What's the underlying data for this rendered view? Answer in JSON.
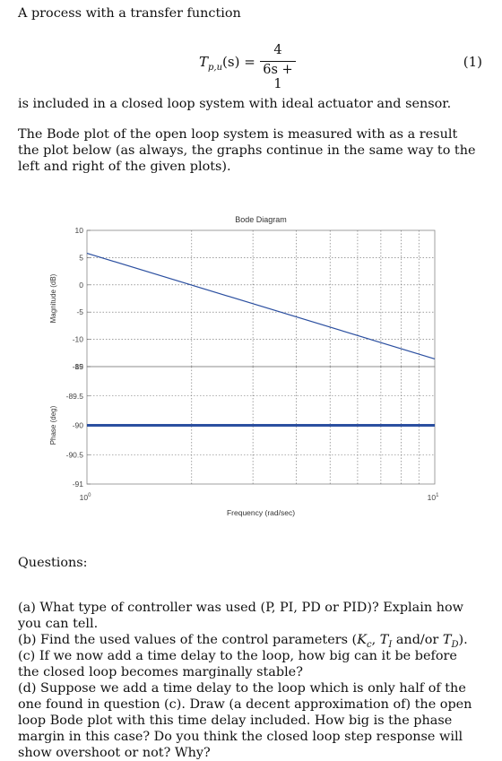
{
  "intro": "A process with a transfer function",
  "equation": {
    "lhs": "T",
    "lhs_sub": "p,u",
    "lhs_arg": "(s) =",
    "numerator": "4",
    "denominator": "6s + 1",
    "number": "(1)"
  },
  "after_equation": "is included in a closed loop system with ideal actuator and sensor.",
  "bode_intro": "The Bode plot of the open loop system is measured with as a result the plot below (as always, the graphs continue in the same way to the left and right of the given plots).",
  "chart_data": {
    "type": "line",
    "title": "Bode Diagram",
    "xlabel": "Frequency (rad/sec)",
    "x_scale": "log",
    "xlim": [
      1,
      10
    ],
    "x_tick_labels": [
      "10^0",
      "10^1"
    ],
    "grid": true,
    "subplots": [
      {
        "name": "magnitude",
        "ylabel": "Magnitude (dB)",
        "ylim": [
          -15,
          10
        ],
        "y_ticks": [
          10,
          5,
          0,
          -5,
          -10,
          -15
        ],
        "series": [
          {
            "x": [
              1,
              10
            ],
            "y": [
              5.8,
              -13.6
            ],
            "color": "#2b4fa0"
          }
        ]
      },
      {
        "name": "phase",
        "ylabel": "Phase (deg)",
        "ylim": [
          -91,
          -89
        ],
        "y_ticks": [
          -89,
          -89.5,
          -90,
          -90.5,
          -91
        ],
        "series": [
          {
            "x": [
              1,
              10
            ],
            "y": [
              -90,
              -90
            ],
            "color": "#2b4fa0"
          }
        ]
      }
    ]
  },
  "questions_heading": "Questions:",
  "questions": {
    "a": "(a) What type of controller was used (P, PI, PD or PID)? Explain how you can tell.",
    "b_start": "(b) Find the used values of the control parameters (",
    "b_kc": "K",
    "b_kc_sub": "c",
    "b_sep1": ", ",
    "b_ti": "T",
    "b_ti_sub": "I",
    "b_sep2": " and/or ",
    "b_td": "T",
    "b_td_sub": "D",
    "b_end": ").",
    "c": "(c) If we now add a time delay to the loop, how big can it be before the closed loop becomes marginally stable?",
    "d": "(d) Suppose we add a time delay to the loop which is only half of the one found in question (c). Draw (a decent approximation of) the open loop Bode plot with this time delay included. How big is the phase margin in this case? Do you think the closed loop step response will show overshoot or not? Why?"
  }
}
